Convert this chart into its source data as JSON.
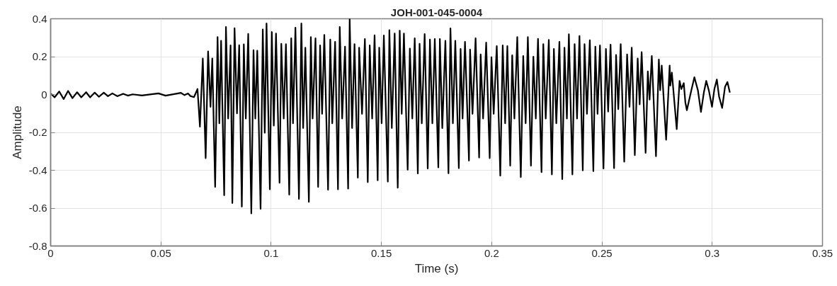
{
  "chart_data": {
    "type": "line",
    "title": "JOH-001-045-0004",
    "xlabel": "Time (s)",
    "ylabel": "Amplitude",
    "color": "#000000",
    "line_style": "solid",
    "grid": true,
    "xlim": [
      0,
      0.35
    ],
    "ylim": [
      -0.8,
      0.4
    ],
    "xticks": [
      0,
      0.05,
      0.1,
      0.15,
      0.2,
      0.25,
      0.3,
      0.35
    ],
    "yticks": [
      -0.8,
      -0.6,
      -0.4,
      -0.2,
      0,
      0.2,
      0.4
    ],
    "x": [
      0.0002,
      0.0018,
      0.0039,
      0.0059,
      0.0079,
      0.0099,
      0.012,
      0.0139,
      0.0161,
      0.0179,
      0.02,
      0.0219,
      0.0241,
      0.026,
      0.028,
      0.0302,
      0.0329,
      0.035,
      0.0372,
      0.0414,
      0.0489,
      0.0521,
      0.0591,
      0.0607,
      0.0623,
      0.0634,
      0.065,
      0.0666,
      0.0677,
      0.069,
      0.0703,
      0.0714,
      0.0725,
      0.0733,
      0.0746,
      0.0757,
      0.0765,
      0.0773,
      0.0787,
      0.0795,
      0.0805,
      0.0816,
      0.0824,
      0.0834,
      0.0845,
      0.0855,
      0.0867,
      0.0876,
      0.0885,
      0.0896,
      0.091,
      0.092,
      0.0928,
      0.0937,
      0.0952,
      0.0962,
      0.0971,
      0.0979,
      0.0994,
      0.1003,
      0.1012,
      0.1022,
      0.1038,
      0.1046,
      0.1057,
      0.1067,
      0.1082,
      0.1091,
      0.1099,
      0.111,
      0.1126,
      0.1137,
      0.1145,
      0.1155,
      0.1171,
      0.118,
      0.1188,
      0.1201,
      0.1213,
      0.1222,
      0.1231,
      0.1241,
      0.1258,
      0.1268,
      0.1277,
      0.129,
      0.1303,
      0.1311,
      0.1322,
      0.1335,
      0.1349,
      0.1356,
      0.1367,
      0.1378,
      0.1393,
      0.1399,
      0.1412,
      0.1425,
      0.1438,
      0.1447,
      0.1458,
      0.1469,
      0.1483,
      0.149,
      0.1501,
      0.1511,
      0.1529,
      0.1536,
      0.1547,
      0.156,
      0.1574,
      0.1583,
      0.1592,
      0.1602,
      0.1619,
      0.1629,
      0.164,
      0.1651,
      0.1665,
      0.1673,
      0.1683,
      0.1696,
      0.171,
      0.172,
      0.1731,
      0.1742,
      0.1758,
      0.1765,
      0.1776,
      0.179,
      0.1804,
      0.1813,
      0.1824,
      0.1835,
      0.1851,
      0.1859,
      0.1868,
      0.1879,
      0.1897,
      0.1902,
      0.1913,
      0.1927,
      0.1943,
      0.195,
      0.1961,
      0.1975,
      0.1991,
      0.1999,
      0.2009,
      0.2023,
      0.2039,
      0.205,
      0.2061,
      0.2071,
      0.2084,
      0.2093,
      0.2103,
      0.2116,
      0.2132,
      0.2143,
      0.2154,
      0.2164,
      0.2178,
      0.2189,
      0.22,
      0.221,
      0.2226,
      0.2234,
      0.2245,
      0.2259,
      0.2273,
      0.2282,
      0.2293,
      0.2307,
      0.232,
      0.233,
      0.2341,
      0.235,
      0.2366,
      0.2376,
      0.2387,
      0.2398,
      0.2413,
      0.2421,
      0.2432,
      0.2445,
      0.2461,
      0.247,
      0.248,
      0.2491,
      0.2507,
      0.2518,
      0.2528,
      0.2539,
      0.2555,
      0.2564,
      0.2574,
      0.2585,
      0.2601,
      0.2614,
      0.2625,
      0.2635,
      0.2649,
      0.2662,
      0.2671,
      0.268,
      0.2698,
      0.2708,
      0.2716,
      0.2726,
      0.2745,
      0.2758,
      0.2764,
      0.2771,
      0.2791,
      0.2807,
      0.281,
      0.2817,
      0.2839,
      0.2852,
      0.286,
      0.2871,
      0.2878,
      0.2885,
      0.2903,
      0.2919,
      0.2935,
      0.2949,
      0.2962,
      0.2973,
      0.2985,
      0.2999,
      0.301,
      0.3021,
      0.3031,
      0.3045,
      0.3058,
      0.3069,
      0.308
    ],
    "values": [
      0.004,
      -0.015,
      0.016,
      -0.024,
      0.019,
      -0.019,
      0.012,
      -0.015,
      0.012,
      -0.015,
      0.01,
      -0.012,
      0.01,
      -0.009,
      0.006,
      -0.009,
      0.004,
      -0.006,
      0.001,
      -0.005,
      0.006,
      -0.006,
      0.009,
      -0.003,
      0.006,
      -0.008,
      -0.014,
      0.029,
      -0.17,
      0.19,
      -0.336,
      0.228,
      -0.065,
      0.19,
      -0.488,
      0.303,
      -0.152,
      0.284,
      -0.532,
      0.357,
      -0.127,
      0.259,
      -0.573,
      0.35,
      -0.1,
      0.26,
      -0.592,
      0.265,
      -0.127,
      0.32,
      -0.628,
      0.234,
      -0.127,
      0.231,
      -0.604,
      0.344,
      -0.202,
      0.375,
      -0.501,
      0.33,
      -0.164,
      0.322,
      -0.466,
      0.268,
      -0.127,
      0.266,
      -0.529,
      0.297,
      -0.152,
      0.353,
      -0.551,
      0.375,
      -0.177,
      0.247,
      -0.567,
      0.303,
      -0.127,
      0.297,
      -0.488,
      0.259,
      -0.102,
      0.315,
      -0.503,
      0.29,
      -0.152,
      0.278,
      -0.501,
      0.357,
      -0.127,
      0.253,
      -0.497,
      0.399,
      -0.177,
      0.266,
      -0.439,
      0.247,
      -0.102,
      0.293,
      -0.463,
      0.259,
      -0.127,
      0.313,
      -0.453,
      0.247,
      -0.152,
      0.312,
      -0.46,
      0.34,
      -0.177,
      0.322,
      -0.492,
      0.337,
      -0.102,
      0.322,
      -0.397,
      0.243,
      -0.127,
      0.297,
      -0.417,
      0.268,
      -0.152,
      0.319,
      -0.391,
      0.29,
      -0.152,
      0.293,
      -0.385,
      0.293,
      -0.177,
      0.284,
      -0.416,
      0.349,
      -0.152,
      0.284,
      -0.389,
      0.241,
      -0.127,
      0.278,
      -0.349,
      0.237,
      -0.102,
      0.297,
      -0.333,
      0.212,
      -0.127,
      0.274,
      -0.336,
      0.197,
      -0.102,
      0.256,
      -0.429,
      0.259,
      -0.152,
      0.256,
      -0.376,
      0.207,
      -0.127,
      0.303,
      -0.436,
      0.203,
      -0.152,
      0.303,
      -0.376,
      0.2,
      -0.127,
      0.294,
      -0.41,
      0.266,
      -0.127,
      0.288,
      -0.422,
      0.241,
      -0.152,
      0.278,
      -0.447,
      0.247,
      -0.127,
      0.318,
      -0.422,
      0.266,
      -0.127,
      0.309,
      -0.401,
      0.266,
      -0.102,
      0.287,
      -0.405,
      0.253,
      -0.102,
      0.259,
      -0.391,
      0.241,
      -0.09,
      0.263,
      -0.389,
      0.209,
      -0.077,
      0.266,
      -0.355,
      0.212,
      -0.065,
      0.247,
      -0.32,
      0.19,
      -0.052,
      0.224,
      -0.308,
      0.122,
      -0.027,
      0.203,
      -0.326,
      0.185,
      0.023,
      0.153,
      -0.239,
      0.153,
      0.047,
      0.116,
      -0.183,
      0.072,
      0.029,
      0.06,
      -0.04,
      -0.083,
      0.01,
      0.091,
      0.023,
      -0.092,
      0.01,
      0.072,
      0.02,
      -0.065,
      0.03,
      0.079,
      -0.01,
      -0.071,
      0.04,
      0.066,
      0.01
    ]
  }
}
